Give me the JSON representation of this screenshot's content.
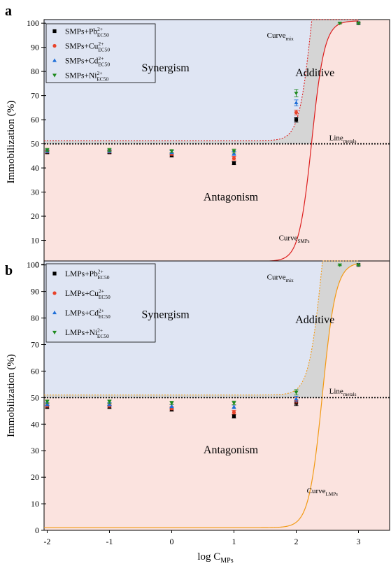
{
  "figure": {
    "colors": {
      "synergism_fill": "#dfe5f3",
      "antagonism_fill": "#fbe3df",
      "additive_fill": "#d5d5d5",
      "line_metals": "#000000",
      "panel_a_curve": "#dd1f1f",
      "panel_b_curve": "#f29a14",
      "pb": "#000000",
      "cu": "#e8442b",
      "cd": "#1f6fd8",
      "ni": "#1f8a1f"
    },
    "xlabel_main": "log C",
    "xlabel_sub": "MPs"
  },
  "chart_data": [
    {
      "type": "scatter",
      "panel_label": "a",
      "ylabel": "Immobilization (%)",
      "xlim": [
        -2.05,
        3.5
      ],
      "ylim": [
        0,
        101.5
      ],
      "xticks": [
        "-2",
        "-1",
        "0",
        "1",
        "2",
        "3"
      ],
      "yticks": [
        "0",
        "10",
        "20",
        "30",
        "40",
        "50",
        "60",
        "70",
        "80",
        "90",
        "100"
      ],
      "legend_position": "top-left",
      "legend": [
        {
          "base": "SMPs+Pb",
          "sup": "2+",
          "sub": "EC50",
          "marker": "square",
          "color_key": "pb"
        },
        {
          "base": "SMPs+Cu",
          "sup": "2+",
          "sub": "EC50",
          "marker": "circle",
          "color_key": "cu"
        },
        {
          "base": "SMPs+Cd",
          "sup": "2+",
          "sub": "EC50",
          "marker": "triangle-up",
          "color_key": "cd"
        },
        {
          "base": "SMPs+Ni",
          "sup": "2+",
          "sub": "EC50",
          "marker": "triangle-down",
          "color_key": "ni"
        }
      ],
      "region_labels": {
        "synergism": "Synergism",
        "additive": "Additive",
        "antagonism": "Antagonism"
      },
      "curve_labels": {
        "mix_base": "Curve",
        "mix_sub": "mix",
        "metals_base": "Line",
        "metals_sub": "metals",
        "mps_base": "Curve",
        "mps_sub": "SMPs"
      },
      "line_metals_y": 50,
      "curve_mps": {
        "bottom": 1.3,
        "top": 101,
        "ec50": 2.25,
        "slope": 4.2
      },
      "series": [
        {
          "name": "SMPs+Pb2+EC50",
          "color_key": "pb",
          "marker": "square",
          "x": [
            -2,
            -1,
            0,
            1,
            2,
            3
          ],
          "y": [
            46.5,
            46.5,
            45.2,
            42.0,
            60.0,
            100
          ],
          "err": [
            0.6,
            0.6,
            0.6,
            0.7,
            1.0,
            0.3
          ]
        },
        {
          "name": "SMPs+Cu2+EC50",
          "color_key": "cu",
          "marker": "circle",
          "x": [
            -2,
            -1,
            0,
            1,
            2,
            3
          ],
          "y": [
            46.8,
            46.8,
            45.8,
            44.0,
            63.0,
            100
          ],
          "err": [
            0.6,
            0.6,
            0.6,
            0.8,
            1.0,
            0.3
          ]
        },
        {
          "name": "SMPs+Cd2+EC50",
          "color_key": "cd",
          "marker": "triangle-up",
          "x": [
            -2,
            -1,
            0,
            1,
            2,
            3
          ],
          "y": [
            47.0,
            47.0,
            46.5,
            46.0,
            67.0,
            100
          ],
          "err": [
            0.6,
            0.6,
            0.6,
            0.8,
            1.2,
            0.3
          ]
        },
        {
          "name": "SMPs+Ni2+EC50",
          "color_key": "ni",
          "marker": "triangle-down",
          "x": [
            -2,
            -1,
            2.7,
            0,
            1,
            2,
            3
          ],
          "y": [
            47.5,
            47.5,
            100,
            47.0,
            47.0,
            71.0,
            100
          ],
          "err": [
            0.6,
            0.6,
            0.3,
            0.6,
            0.8,
            1.5,
            0.3
          ]
        }
      ]
    },
    {
      "type": "scatter",
      "panel_label": "b",
      "ylabel": "Immobilization (%)",
      "xlim": [
        -2.05,
        3.5
      ],
      "ylim": [
        0,
        101.5
      ],
      "xticks": [
        "-2",
        "-1",
        "0",
        "1",
        "2",
        "3"
      ],
      "yticks": [
        "0",
        "10",
        "20",
        "30",
        "40",
        "50",
        "60",
        "70",
        "80",
        "90",
        "100"
      ],
      "legend_position": "top-left",
      "legend": [
        {
          "base": "LMPs+Pb",
          "sup": "2+",
          "sub": "EC50",
          "marker": "square",
          "color_key": "pb"
        },
        {
          "base": "LMPs+Cu",
          "sup": "2+",
          "sub": "EC50",
          "marker": "circle",
          "color_key": "cu"
        },
        {
          "base": "LMPs+Cd",
          "sup": "2+",
          "sub": "EC50",
          "marker": "triangle-up",
          "color_key": "cd"
        },
        {
          "base": "LMPs+Ni",
          "sup": "2+",
          "sub": "EC50",
          "marker": "triangle-down",
          "color_key": "ni"
        }
      ],
      "region_labels": {
        "synergism": "Synergism",
        "additive": "Additive",
        "antagonism": "Antagonism"
      },
      "curve_labels": {
        "mix_base": "Curve",
        "mix_sub": "mix",
        "metals_base": "Line",
        "metals_sub": "metals",
        "mps_base": "Curve",
        "mps_sub": "LMPs"
      },
      "line_metals_y": 50,
      "curve_mps": {
        "bottom": 1.0,
        "top": 101,
        "ec50": 2.42,
        "slope": 4.0
      },
      "series": [
        {
          "name": "LMPs+Pb2+EC50",
          "color_key": "pb",
          "marker": "square",
          "x": [
            -2,
            -1,
            0,
            1,
            2,
            3
          ],
          "y": [
            46.5,
            46.5,
            45.5,
            43.0,
            48.0,
            100
          ],
          "err": [
            0.6,
            0.6,
            0.6,
            0.7,
            1.0,
            0.3
          ]
        },
        {
          "name": "LMPs+Cu2+EC50",
          "color_key": "cu",
          "marker": "circle",
          "x": [
            -2,
            -1,
            0,
            1,
            2,
            3
          ],
          "y": [
            47.0,
            47.0,
            46.0,
            44.5,
            49.0,
            100
          ],
          "err": [
            0.6,
            0.6,
            0.6,
            0.7,
            1.0,
            0.3
          ]
        },
        {
          "name": "LMPs+Cd2+EC50",
          "color_key": "cd",
          "marker": "triangle-up",
          "x": [
            -2,
            -1,
            0,
            1,
            2,
            3
          ],
          "y": [
            47.5,
            47.5,
            46.8,
            46.5,
            49.5,
            100
          ],
          "err": [
            0.6,
            0.6,
            0.6,
            0.7,
            1.0,
            0.3
          ]
        },
        {
          "name": "LMPs+Ni2+EC50",
          "color_key": "ni",
          "marker": "triangle-down",
          "x": [
            -2,
            -1,
            0,
            1,
            2,
            2.7,
            3
          ],
          "y": [
            48.5,
            48.5,
            48.0,
            48.0,
            52.0,
            100,
            100
          ],
          "err": [
            0.6,
            0.6,
            0.6,
            0.7,
            1.0,
            0.3,
            0.3
          ]
        }
      ]
    }
  ]
}
